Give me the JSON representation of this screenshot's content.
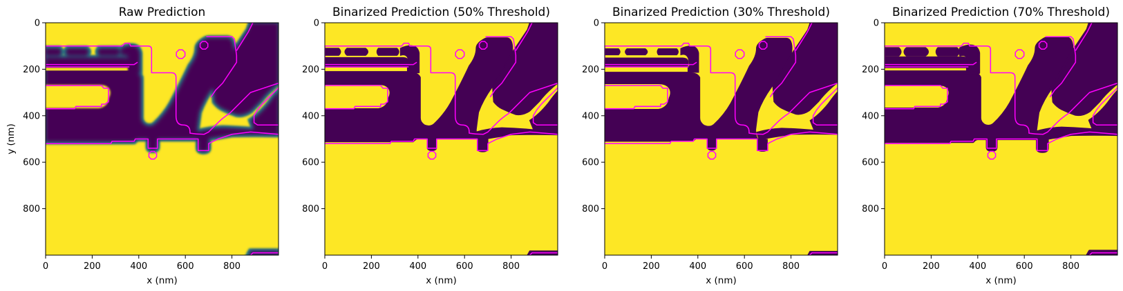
{
  "figure": {
    "panel_count": 4
  },
  "colors": {
    "yellow": "#fde725",
    "purple": "#440154",
    "contour": "#ff00ff",
    "teal": "#21918c",
    "green": "#5ec962"
  },
  "chart_data": [
    {
      "type": "heatmap",
      "title": "Raw Prediction",
      "xlabel": "x (nm)",
      "ylabel": "y (nm)",
      "xlim": [
        0,
        1000
      ],
      "ylim": [
        1000,
        0
      ],
      "xticks": [
        "0",
        "200",
        "400",
        "600",
        "800"
      ],
      "yticks": [
        "0",
        "200",
        "400",
        "600",
        "800"
      ],
      "variant": "raw",
      "threshold": null
    },
    {
      "type": "heatmap",
      "title": "Binarized Prediction (50% Threshold)",
      "xlabel": "x (nm)",
      "ylabel": "",
      "xlim": [
        0,
        1000
      ],
      "ylim": [
        1000,
        0
      ],
      "xticks": [
        "0",
        "200",
        "400",
        "600",
        "800"
      ],
      "yticks": [
        "0",
        "200",
        "400",
        "600",
        "800"
      ],
      "variant": "binary",
      "threshold": 0.5
    },
    {
      "type": "heatmap",
      "title": "Binarized Prediction (30% Threshold)",
      "xlabel": "x (nm)",
      "ylabel": "",
      "xlim": [
        0,
        1000
      ],
      "ylim": [
        1000,
        0
      ],
      "xticks": [
        "0",
        "200",
        "400",
        "600",
        "800"
      ],
      "yticks": [
        "0",
        "200",
        "400",
        "600",
        "800"
      ],
      "variant": "binary",
      "threshold": 0.3
    },
    {
      "type": "heatmap",
      "title": "Binarized Prediction (70% Threshold)",
      "xlabel": "x (nm)",
      "ylabel": "",
      "xlim": [
        0,
        1000
      ],
      "ylim": [
        1000,
        0
      ],
      "xticks": [
        "0",
        "200",
        "400",
        "600",
        "800"
      ],
      "yticks": [
        "0",
        "200",
        "400",
        "600",
        "800"
      ],
      "variant": "binary",
      "threshold": 0.7
    }
  ]
}
